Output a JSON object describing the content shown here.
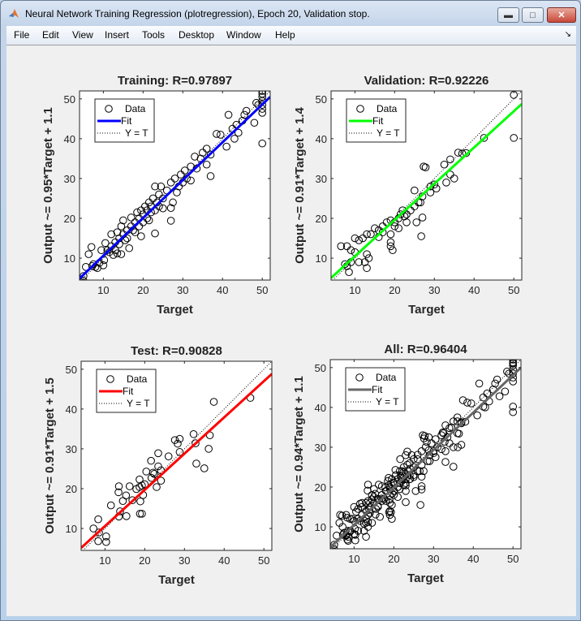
{
  "window": {
    "title": "Neural Network Training Regression (plotregression), Epoch 20, Validation stop.",
    "buttons": {
      "minimize": "minimize",
      "maximize": "maximize",
      "close": "close"
    }
  },
  "menu": [
    "File",
    "Edit",
    "View",
    "Insert",
    "Tools",
    "Desktop",
    "Window",
    "Help"
  ],
  "chart_data": [
    {
      "type": "scatter",
      "title": "Training: R=0.97897",
      "xlabel": "Target",
      "ylabel": "Output ~= 0.95*Target + 1.1",
      "xlim": [
        4,
        52
      ],
      "ylim": [
        4.5,
        52
      ],
      "xticks": [
        10,
        20,
        30,
        40,
        50
      ],
      "yticks": [
        10,
        20,
        30,
        40,
        50
      ],
      "fit": {
        "slope": 0.95,
        "intercept": 1.1,
        "color": "#0000ff"
      },
      "legend": {
        "position": "top-left",
        "entries": [
          "Data",
          "Fit",
          "Y = T"
        ]
      },
      "points": [
        [
          5,
          5.5
        ],
        [
          5,
          4.3
        ],
        [
          5.6,
          7.8
        ],
        [
          6.3,
          11
        ],
        [
          7,
          12.8
        ],
        [
          7.2,
          8
        ],
        [
          7.5,
          8.5
        ],
        [
          8,
          7.8
        ],
        [
          8.5,
          7.5
        ],
        [
          9,
          8.8
        ],
        [
          9.5,
          12
        ],
        [
          10,
          8.2
        ],
        [
          10.2,
          9.5
        ],
        [
          10.5,
          13.8
        ],
        [
          11,
          12
        ],
        [
          11.5,
          11.5
        ],
        [
          12,
          16
        ],
        [
          12,
          13
        ],
        [
          12.5,
          10.8
        ],
        [
          13,
          14
        ],
        [
          13,
          12
        ],
        [
          13.5,
          16.5
        ],
        [
          13.5,
          11.2
        ],
        [
          14,
          15
        ],
        [
          14,
          13.5
        ],
        [
          14.5,
          18
        ],
        [
          14.5,
          11
        ],
        [
          15,
          19.5
        ],
        [
          15,
          16
        ],
        [
          15.5,
          14.5
        ],
        [
          16,
          17
        ],
        [
          16,
          15
        ],
        [
          16.5,
          12.5
        ],
        [
          17,
          18
        ],
        [
          17,
          20.2
        ],
        [
          17.5,
          17
        ],
        [
          18,
          19
        ],
        [
          18,
          16.5
        ],
        [
          18.5,
          21.5
        ],
        [
          19,
          20
        ],
        [
          19,
          18
        ],
        [
          19.5,
          15.5
        ],
        [
          19.5,
          22
        ],
        [
          20,
          21
        ],
        [
          20,
          19
        ],
        [
          20.5,
          23
        ],
        [
          21,
          20
        ],
        [
          21,
          22
        ],
        [
          21.5,
          24
        ],
        [
          21.5,
          19.5
        ],
        [
          22,
          21.5
        ],
        [
          22,
          23
        ],
        [
          22.5,
          25
        ],
        [
          23,
          22
        ],
        [
          23,
          16.2
        ],
        [
          23,
          28
        ],
        [
          23.5,
          24
        ],
        [
          24,
          26
        ],
        [
          24,
          23
        ],
        [
          24.5,
          28
        ],
        [
          25,
          25
        ],
        [
          25,
          22.5
        ],
        [
          26,
          27
        ],
        [
          27,
          29
        ],
        [
          27,
          22.6
        ],
        [
          27,
          19.4
        ],
        [
          27.5,
          24
        ],
        [
          28,
          30
        ],
        [
          28.5,
          26.5
        ],
        [
          29,
          28
        ],
        [
          29.5,
          31
        ],
        [
          30,
          29
        ],
        [
          30.5,
          32
        ],
        [
          31,
          30
        ],
        [
          32,
          33
        ],
        [
          32,
          29.5
        ],
        [
          33,
          35.5
        ],
        [
          33.5,
          32.5
        ],
        [
          34.5,
          35
        ],
        [
          35,
          36.5
        ],
        [
          36,
          33.5
        ],
        [
          36,
          37.5
        ],
        [
          37,
          30.6
        ],
        [
          37,
          36
        ],
        [
          38.5,
          41.2
        ],
        [
          39.5,
          41
        ],
        [
          41,
          38
        ],
        [
          41.5,
          46
        ],
        [
          42.5,
          42.5
        ],
        [
          43,
          40
        ],
        [
          43.5,
          43.5
        ],
        [
          44,
          41.5
        ],
        [
          45,
          44.5
        ],
        [
          45.5,
          46
        ],
        [
          46,
          47
        ],
        [
          48,
          44
        ],
        [
          48.5,
          49
        ],
        [
          49,
          48.5
        ],
        [
          50,
          38.8
        ],
        [
          50,
          46.5
        ],
        [
          50,
          47.5
        ],
        [
          50,
          48.5
        ],
        [
          50,
          49.5
        ],
        [
          50,
          50.5
        ],
        [
          50,
          51.3
        ],
        [
          50,
          52
        ]
      ]
    },
    {
      "type": "scatter",
      "title": "Validation: R=0.92226",
      "xlabel": "Target",
      "ylabel": "Output ~= 0.91*Target + 1.4",
      "xlim": [
        4,
        52
      ],
      "ylim": [
        4.5,
        52
      ],
      "xticks": [
        10,
        20,
        30,
        40,
        50
      ],
      "yticks": [
        10,
        20,
        30,
        40,
        50
      ],
      "fit": {
        "slope": 0.91,
        "intercept": 1.4,
        "color": "#00ff00"
      },
      "legend": {
        "position": "top-left",
        "entries": [
          "Data",
          "Fit",
          "Y = T"
        ]
      },
      "points": [
        [
          50,
          51
        ],
        [
          50,
          40.2
        ],
        [
          42.5,
          40.2
        ],
        [
          36,
          36.5
        ],
        [
          37,
          36.3
        ],
        [
          38,
          36.4
        ],
        [
          32.5,
          33.5
        ],
        [
          27.3,
          33
        ],
        [
          27.8,
          32.8
        ],
        [
          34,
          34.8
        ],
        [
          34,
          31
        ],
        [
          35,
          30
        ],
        [
          29,
          28
        ],
        [
          30,
          28.5
        ],
        [
          27,
          25.5
        ],
        [
          26,
          24
        ],
        [
          25,
          23
        ],
        [
          24,
          22
        ],
        [
          26.5,
          24
        ],
        [
          22,
          22
        ],
        [
          21.5,
          21
        ],
        [
          21,
          20
        ],
        [
          22.5,
          20.5
        ],
        [
          23,
          19
        ],
        [
          25.5,
          19
        ],
        [
          27,
          20.2
        ],
        [
          23,
          21
        ],
        [
          20,
          19
        ],
        [
          19,
          19.5
        ],
        [
          18,
          19
        ],
        [
          17,
          18
        ],
        [
          16,
          17
        ],
        [
          15,
          17.5
        ],
        [
          20,
          18
        ],
        [
          21,
          17.5
        ],
        [
          19,
          16
        ],
        [
          17,
          16.5
        ],
        [
          13,
          16
        ],
        [
          14,
          16
        ],
        [
          16,
          15.3
        ],
        [
          12,
          15
        ],
        [
          10,
          15
        ],
        [
          11,
          14.5
        ],
        [
          8,
          13
        ],
        [
          6.5,
          13
        ],
        [
          9,
          12
        ],
        [
          10,
          11.5
        ],
        [
          13,
          11
        ],
        [
          13.5,
          10
        ],
        [
          12.5,
          9
        ],
        [
          11,
          9
        ],
        [
          9,
          9
        ],
        [
          8,
          8
        ],
        [
          7.5,
          8.5
        ],
        [
          8.5,
          6.5
        ],
        [
          13,
          7.5
        ],
        [
          19,
          13
        ],
        [
          19,
          14
        ],
        [
          19.5,
          12
        ],
        [
          29,
          26.5
        ],
        [
          30.5,
          27.5
        ],
        [
          26.7,
          15.5
        ],
        [
          25,
          27
        ],
        [
          33,
          29
        ]
      ]
    },
    {
      "type": "scatter",
      "title": "Test: R=0.90828",
      "xlabel": "Target",
      "ylabel": "Output ~= 0.91*Target + 1.5",
      "xlim": [
        4,
        52
      ],
      "ylim": [
        4.5,
        52
      ],
      "xticks": [
        10,
        20,
        30,
        40,
        50
      ],
      "yticks": [
        10,
        20,
        30,
        40,
        50
      ],
      "fit": {
        "slope": 0.91,
        "intercept": 1.5,
        "color": "#ff0000"
      },
      "legend": {
        "position": "top-left",
        "entries": [
          "Data",
          "Fit",
          "Y = T"
        ]
      },
      "points": [
        [
          37.4,
          41.8
        ],
        [
          46.6,
          42.8
        ],
        [
          32.3,
          33.7
        ],
        [
          36.4,
          33.4
        ],
        [
          27.6,
          32.2
        ],
        [
          28.8,
          32.5
        ],
        [
          28.3,
          31.3
        ],
        [
          32.8,
          31.4
        ],
        [
          36.1,
          30
        ],
        [
          28.8,
          29.2
        ],
        [
          33,
          26.3
        ],
        [
          35,
          25.1
        ],
        [
          23.4,
          28.9
        ],
        [
          26,
          28.1
        ],
        [
          21.6,
          27
        ],
        [
          23.4,
          25.6
        ],
        [
          20.4,
          24.3
        ],
        [
          22.1,
          24
        ],
        [
          24.1,
          24.6
        ],
        [
          18.7,
          22.3
        ],
        [
          23,
          20.4
        ],
        [
          24.1,
          22
        ],
        [
          13.5,
          20.6
        ],
        [
          16.2,
          20.6
        ],
        [
          13.4,
          19.1
        ],
        [
          17.9,
          19.9
        ],
        [
          19.6,
          18.4
        ],
        [
          15.3,
          18.3
        ],
        [
          16.9,
          17.1
        ],
        [
          18.9,
          16.8
        ],
        [
          11.5,
          15.8
        ],
        [
          13.8,
          14.3
        ],
        [
          13.5,
          13
        ],
        [
          15.4,
          13.1
        ],
        [
          18.8,
          13.7
        ],
        [
          19.3,
          13.7
        ],
        [
          8.3,
          12.3
        ],
        [
          7.1,
          10
        ],
        [
          8.5,
          9
        ],
        [
          10.3,
          8
        ],
        [
          8.3,
          6.8
        ],
        [
          10.3,
          6.6
        ],
        [
          14.5,
          16.9
        ],
        [
          21.7,
          22.7
        ],
        [
          22.4,
          23.7
        ],
        [
          18.7,
          20.4
        ],
        [
          19.3,
          20.8
        ],
        [
          20,
          21.1
        ]
      ]
    },
    {
      "type": "scatter",
      "title": "All: R=0.96404",
      "xlabel": "Target",
      "ylabel": "Output ~= 0.94*Target + 1.1",
      "xlim": [
        4,
        52
      ],
      "ylim": [
        4.5,
        52
      ],
      "xticks": [
        10,
        20,
        30,
        40,
        50
      ],
      "yticks": [
        10,
        20,
        30,
        40,
        50
      ],
      "fit": {
        "slope": 0.94,
        "intercept": 1.1,
        "color": "#666666"
      },
      "legend": {
        "position": "top-left",
        "entries": [
          "Data",
          "Fit",
          "Y = T"
        ]
      },
      "points_from": [
        "Training",
        "Validation",
        "Test"
      ]
    }
  ]
}
